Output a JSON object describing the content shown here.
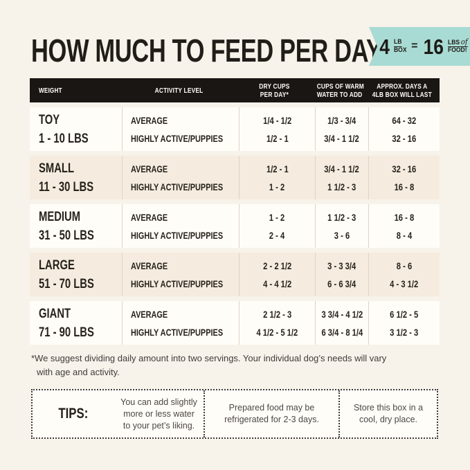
{
  "page_title": "HOW MUCH TO FEED PER DAY",
  "badge": {
    "num1": "4",
    "unit1_top": "LB",
    "unit1_bottom": "BOX",
    "equals": "=",
    "num2": "16",
    "unit2_top": "LBS",
    "unit2_script": "of",
    "unit2_bottom": "FOOD!"
  },
  "table": {
    "header": {
      "col1": "WEIGHT",
      "col2": "ACTIVITY LEVEL",
      "col3_line1": "DRY CUPS",
      "col3_line2": "PER DAY*",
      "col4_line1": "CUPS OF WARM",
      "col4_line2": "WATER TO ADD",
      "col5_line1": "APPROX. DAYS A",
      "col5_line2": "4LB BOX WILL LAST"
    },
    "rows": [
      {
        "weight_name": "TOY",
        "weight_range": "1 - 10 LBS",
        "activity_1": "AVERAGE",
        "activity_2": "HIGHLY ACTIVE/PUPPIES",
        "dry_1": "1/4 - 1/2",
        "dry_2": "1/2 - 1",
        "water_1": "1/3 - 3/4",
        "water_2": "3/4 - 1 1/2",
        "days_1": "64 - 32",
        "days_2": "32 - 16"
      },
      {
        "weight_name": "SMALL",
        "weight_range": "11 - 30 LBS",
        "activity_1": "AVERAGE",
        "activity_2": "HIGHLY ACTIVE/PUPPIES",
        "dry_1": "1/2 - 1",
        "dry_2": "1 - 2",
        "water_1": "3/4 - 1 1/2",
        "water_2": "1 1/2 - 3",
        "days_1": "32 - 16",
        "days_2": "16 - 8"
      },
      {
        "weight_name": "MEDIUM",
        "weight_range": "31 - 50 LBS",
        "activity_1": "AVERAGE",
        "activity_2": "HIGHLY ACTIVE/PUPPIES",
        "dry_1": "1 - 2",
        "dry_2": "2 - 4",
        "water_1": "1 1/2 - 3",
        "water_2": "3 - 6",
        "days_1": "16 - 8",
        "days_2": "8 - 4"
      },
      {
        "weight_name": "LARGE",
        "weight_range": "51 - 70 LBS",
        "activity_1": "AVERAGE",
        "activity_2": "HIGHLY ACTIVE/PUPPIES",
        "dry_1": "2 - 2 1/2",
        "dry_2": "4 - 4 1/2",
        "water_1": "3 - 3 3/4",
        "water_2": "6 - 6 3/4",
        "days_1": "8 - 6",
        "days_2": "4 - 3 1/2"
      },
      {
        "weight_name": "GIANT",
        "weight_range": "71 - 90 LBS",
        "activity_1": "AVERAGE",
        "activity_2": "HIGHLY ACTIVE/PUPPIES",
        "dry_1": "2 1/2 - 3",
        "dry_2": "4 1/2 - 5 1/2",
        "water_1": "3 3/4 - 4 1/2",
        "water_2": "6 3/4 - 8 1/4",
        "days_1": "6 1/2 - 5",
        "days_2": "3 1/2 - 3"
      }
    ]
  },
  "footnote": {
    "line1": "*We suggest dividing daily amount into two servings. Your individual dog’s needs will vary",
    "line2": "with age and activity."
  },
  "tips": {
    "label": "TIPS:",
    "tip1": "You can add slightly more or less water to your pet’s liking.",
    "tip2": "Prepared food may be refrigerated for 2-3 days.",
    "tip3": "Store this box in a cool, dry place."
  },
  "colors": {
    "background": "#f7f2ea",
    "row_tan": "#f5ecdf",
    "row_white": "#fffdf8",
    "header_bg": "#191613",
    "badge_teal": "#a8dbd3",
    "text": "#26221c",
    "divider": "#ddd4c5"
  }
}
